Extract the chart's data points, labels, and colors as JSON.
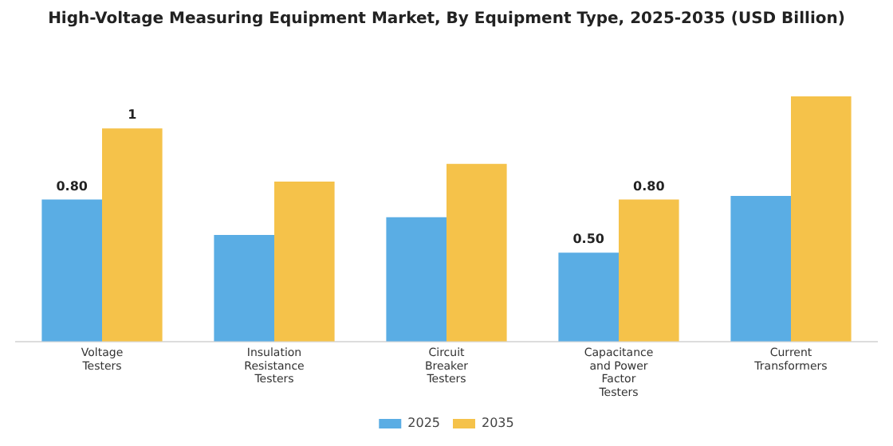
{
  "chart_data": {
    "type": "bar",
    "title": "High-Voltage Measuring Equipment Market, By Equipment Type, 2025-2035 (USD Billion)",
    "categories": [
      "Voltage Testers",
      "Insulation Resistance Testers",
      "Circuit Breaker Testers",
      "Capacitance and Power Factor Testers",
      "Current Transformers"
    ],
    "series": [
      {
        "name": "2025",
        "color": "#5aade4",
        "values": [
          0.8,
          0.6,
          0.7,
          0.5,
          0.82
        ],
        "value_labels": [
          "0.80",
          null,
          null,
          "0.50",
          null
        ]
      },
      {
        "name": "2035",
        "color": "#f5c24a",
        "values": [
          1.2,
          0.9,
          1.0,
          0.8,
          1.38
        ],
        "value_labels": [
          "1",
          null,
          null,
          "0.80",
          null
        ]
      }
    ],
    "legend": "bottom",
    "grid": false
  }
}
